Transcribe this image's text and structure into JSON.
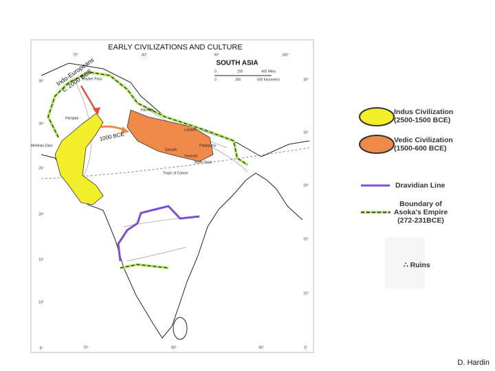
{
  "map": {
    "title": "EARLY CIVILIZATIONS AND CULTURE",
    "region": "SOUTH ASIA",
    "scale": {
      "miles": [
        "0",
        "200",
        "400 Miles"
      ],
      "km": [
        "0",
        "300",
        "600 Kilometers"
      ]
    },
    "graticule": {
      "top": [
        "70°",
        "80°",
        "90°",
        "100°"
      ],
      "left": [
        "35°",
        "30°",
        "25°",
        "20°",
        "15°",
        "10°",
        "5°"
      ],
      "right": [
        "30°",
        "25°",
        "20°",
        "15°",
        "10°",
        "5°"
      ],
      "bottom": [
        "70°",
        "80°",
        "90°"
      ]
    },
    "migrations": [
      "Indo-Europeans",
      "c. 2000 BCE",
      "1000 BCE"
    ],
    "places": [
      "Khyber Pass",
      "Harappa",
      "Mohenjo-Daro",
      "Hardwar",
      "Lumbini",
      "Pataliputra",
      "Sarnath",
      "Varanasi",
      "Bodh Gaya",
      "Tropic of Cancer"
    ]
  },
  "legend": [
    {
      "label": [
        "Indus Civilization",
        "(2500-1500 BCE)"
      ]
    },
    {
      "label": [
        "Vedic Civilization",
        "(1500-600 BCE)"
      ]
    },
    {
      "label": [
        "Dravidian Line"
      ]
    },
    {
      "label": [
        "Boundary of",
        "Asoka's Empire",
        "(272-231BCE)"
      ]
    },
    {
      "label": [
        "∴ Ruins"
      ]
    }
  ],
  "credit": "D. Hardin"
}
